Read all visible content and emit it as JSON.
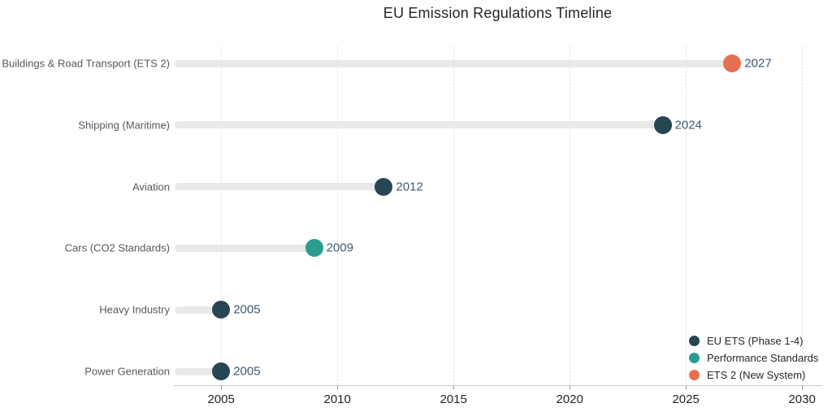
{
  "chart_data": {
    "type": "scatter",
    "subtype": "horizontal-lollipop-timeline",
    "title": "EU Emission Regulations Timeline",
    "categories": [
      "Buildings & Road Transport (ETS 2)",
      "Shipping (Maritime)",
      "Aviation",
      "Cars (CO2 Standards)",
      "Heavy Industry",
      "Power Generation"
    ],
    "values": [
      2027,
      2024,
      2012,
      2009,
      2005,
      2005
    ],
    "groups": [
      "ets2",
      "eu_ets",
      "eu_ets",
      "performance",
      "eu_ets",
      "eu_ets"
    ],
    "colors": {
      "eu_ets": "#264653",
      "performance": "#2a9d8f",
      "ets2": "#e76f51"
    },
    "stem_color": "#e9e9e9",
    "x_ticks": [
      2005,
      2010,
      2015,
      2020,
      2025,
      2030
    ],
    "xlim": [
      2003.0,
      2030.8
    ],
    "grid": "vertical-dashed",
    "legend": {
      "position": "bottom-right",
      "entries": [
        {
          "label": "EU ETS (Phase 1-4)",
          "group": "eu_ets"
        },
        {
          "label": "Performance Standards",
          "group": "performance"
        },
        {
          "label": "ETS 2 (New System)",
          "group": "ets2"
        }
      ]
    }
  }
}
